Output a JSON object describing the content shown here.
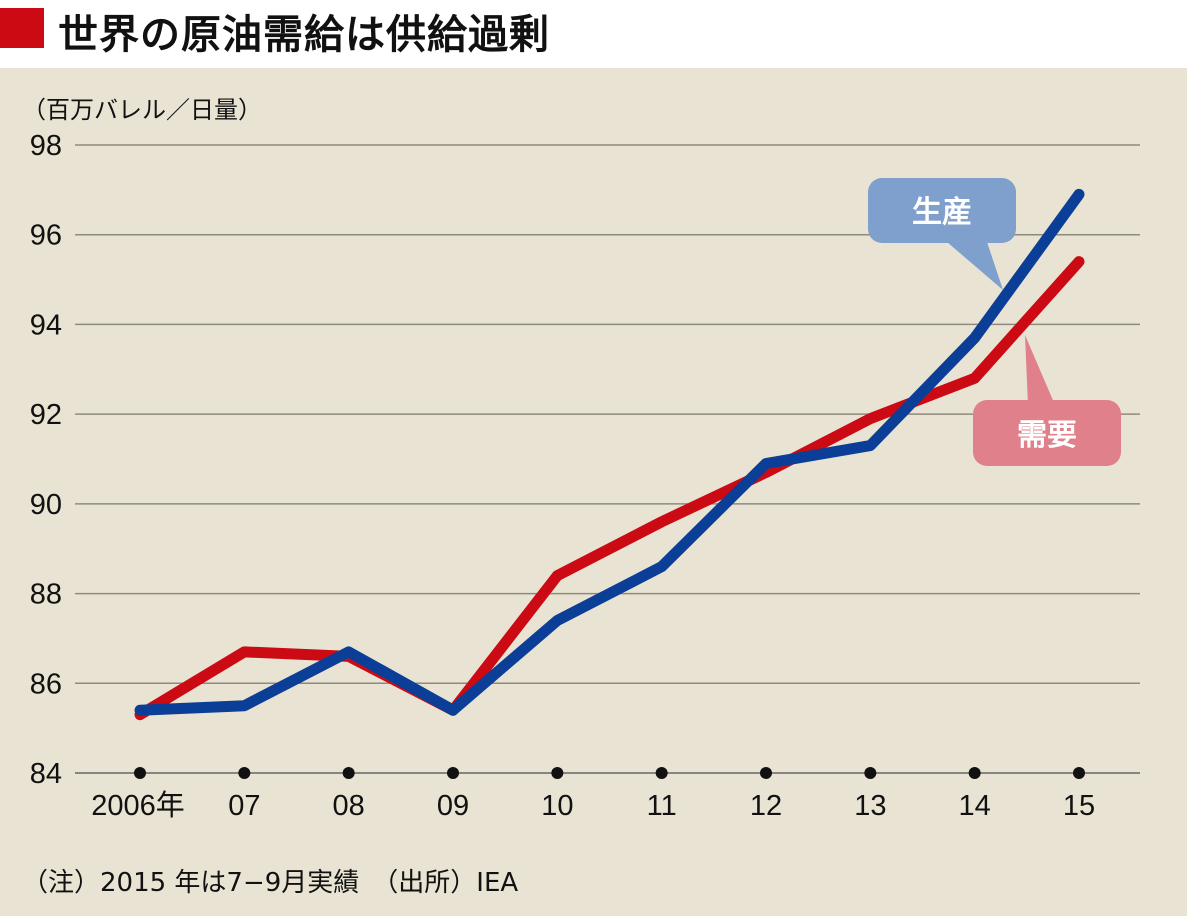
{
  "title": "世界の原油需給は供給過剰",
  "note": "（注）2015 年は7−9月実績　（出所）IEA",
  "chart_data": {
    "type": "line",
    "title": "世界の原油需給は供給過剰",
    "ylabel": "（百万バレル／日量）",
    "xlabel": "",
    "categories": [
      "2006年",
      "07",
      "08",
      "09",
      "10",
      "11",
      "12",
      "13",
      "14",
      "15"
    ],
    "ylim": [
      84,
      98
    ],
    "yticks": [
      84,
      86,
      88,
      90,
      92,
      94,
      96,
      98
    ],
    "grid": true,
    "series": [
      {
        "name": "需要",
        "color": "#cc0a14",
        "values": [
          85.3,
          86.7,
          86.6,
          85.4,
          88.4,
          89.6,
          90.7,
          91.9,
          92.8,
          95.4
        ]
      },
      {
        "name": "生産",
        "color": "#0a3e97",
        "values": [
          85.4,
          85.5,
          86.7,
          85.4,
          87.4,
          88.6,
          90.9,
          91.3,
          93.7,
          96.9
        ]
      }
    ],
    "callout_colors": {
      "生産": "#7f9fcc",
      "需要": "#e0808a"
    }
  }
}
